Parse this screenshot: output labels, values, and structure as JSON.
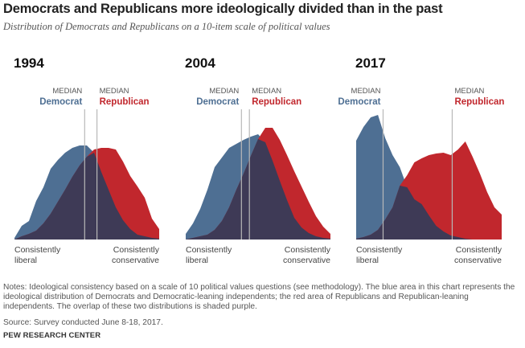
{
  "header": {
    "title": "Democrats and Republicans more ideologically divided than in the past",
    "subtitle": "Distribution of Democrats and Republicans on a 10-item scale of political values"
  },
  "footer": {
    "notes": [
      "Notes: Ideological consistency based on a scale of 10 political values questions (see methodology). The blue area in this chart represents the",
      "ideological distribution of Democrats and Democratic-leaning independents; the red area of Republicans and Republican-leaning",
      "independents. The overlap of these two distributions is shaded purple."
    ],
    "source": "Source: Survey conducted June 8-18, 2017.",
    "org": "PEW RESEARCH CENTER"
  },
  "colors": {
    "democrat": "#4e6f93",
    "republican": "#c1272d",
    "overlap": "#3e3a56",
    "median_line": "#b8b8b8"
  },
  "chart_data": [
    {
      "type": "area",
      "title": "1994",
      "median_label": "MEDIAN",
      "xlabel_left": [
        "Consistently",
        "liberal"
      ],
      "xlabel_right": [
        "Consistently",
        "conservative"
      ],
      "x": [
        0,
        1,
        2,
        3,
        4,
        5,
        6,
        7,
        8,
        9,
        10,
        11,
        12,
        13,
        14,
        15,
        16,
        17,
        18,
        19,
        20
      ],
      "series": [
        {
          "name": "Democrat",
          "values": [
            2,
            17,
            23,
            48,
            65,
            88,
            99,
            108,
            114,
            117,
            117,
            108,
            84,
            62,
            40,
            24,
            13,
            6,
            4,
            2,
            1
          ],
          "median": 9.7
        },
        {
          "name": "Republican",
          "values": [
            0,
            4,
            7,
            11,
            20,
            32,
            47,
            62,
            78,
            92,
            103,
            112,
            114,
            114,
            112,
            97,
            79,
            66,
            52,
            26,
            13
          ],
          "median": 11.4
        }
      ]
    },
    {
      "type": "area",
      "title": "2004",
      "median_label": "MEDIAN",
      "xlabel_left": [
        "Consistently",
        "liberal"
      ],
      "xlabel_right": [
        "Consistently",
        "conservative"
      ],
      "x": [
        0,
        1,
        2,
        3,
        4,
        5,
        6,
        7,
        8,
        9,
        10,
        11,
        12,
        13,
        14,
        15,
        16,
        17,
        18,
        19,
        20
      ],
      "series": [
        {
          "name": "Democrat",
          "values": [
            7,
            20,
            38,
            62,
            90,
            102,
            114,
            119,
            124,
            128,
            131,
            121,
            98,
            73,
            49,
            27,
            15,
            8,
            4,
            2,
            1
          ],
          "median": 7.7
        },
        {
          "name": "Republican",
          "values": [
            0,
            2,
            4,
            6,
            12,
            23,
            40,
            62,
            82,
            104,
            125,
            139,
            139,
            124,
            105,
            85,
            66,
            47,
            29,
            16,
            7
          ],
          "median": 8.8
        }
      ]
    },
    {
      "type": "area",
      "title": "2017",
      "median_label": "MEDIAN",
      "xlabel_left": [
        "Consistently",
        "liberal"
      ],
      "xlabel_right": [
        "Consistently",
        "conservative"
      ],
      "x": [
        0,
        1,
        2,
        3,
        4,
        5,
        6,
        7,
        8,
        9,
        10,
        11,
        12,
        13,
        14,
        15,
        16,
        17,
        18,
        19,
        20
      ],
      "series": [
        {
          "name": "Democrat",
          "values": [
            123,
            140,
            152,
            155,
            126,
            105,
            90,
            65,
            50,
            44,
            30,
            17,
            10,
            5,
            3,
            1,
            0,
            0,
            0,
            0,
            0
          ],
          "median": 3.7
        },
        {
          "name": "Republican",
          "values": [
            1,
            3,
            6,
            12,
            25,
            40,
            67,
            80,
            96,
            101,
            105,
            107,
            108,
            105,
            112,
            122,
            103,
            82,
            59,
            40,
            31
          ],
          "median": 13.2
        }
      ]
    }
  ]
}
